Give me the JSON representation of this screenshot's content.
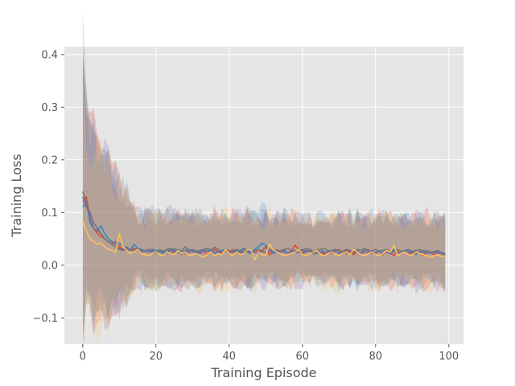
{
  "chart_data": {
    "type": "line",
    "style": "ggplot",
    "title": "",
    "xlabel": "Training Episode",
    "ylabel": "Training Loss",
    "xlim": [
      -5,
      104
    ],
    "ylim": [
      -0.15,
      0.415
    ],
    "x_ticks": [
      0,
      20,
      40,
      60,
      80,
      100
    ],
    "y_ticks": [
      -0.1,
      0.0,
      0.1,
      0.2,
      0.3,
      0.4
    ],
    "y_tick_labels": [
      "−0.1",
      "0.0",
      "0.1",
      "0.2",
      "0.3",
      "0.4"
    ],
    "x_tick_labels": [
      "0",
      "20",
      "40",
      "60",
      "80",
      "100"
    ],
    "grid": true,
    "legend": "none",
    "shaded_band": "mean ± deviation per series",
    "x": [
      0,
      1,
      2,
      3,
      4,
      5,
      6,
      7,
      8,
      9,
      10,
      11,
      12,
      13,
      14,
      15,
      16,
      17,
      18,
      19,
      20,
      21,
      22,
      23,
      24,
      25,
      26,
      27,
      28,
      29,
      30,
      31,
      32,
      33,
      34,
      35,
      36,
      37,
      38,
      39,
      40,
      41,
      42,
      43,
      44,
      45,
      46,
      47,
      48,
      49,
      50,
      51,
      52,
      53,
      54,
      55,
      56,
      57,
      58,
      59,
      60,
      61,
      62,
      63,
      64,
      65,
      66,
      67,
      68,
      69,
      70,
      71,
      72,
      73,
      74,
      75,
      76,
      77,
      78,
      79,
      80,
      81,
      82,
      83,
      84,
      85,
      86,
      87,
      88,
      89,
      90,
      91,
      92,
      93,
      94,
      95,
      96,
      97,
      98,
      99
    ],
    "series": [
      {
        "color": "#E24A33",
        "values": [
          0.12,
          0.13,
          0.09,
          0.07,
          0.06,
          0.055,
          0.05,
          0.045,
          0.04,
          0.045,
          0.035,
          0.03,
          0.028,
          0.03,
          0.032,
          0.028,
          0.025,
          0.027,
          0.03,
          0.024,
          0.025,
          0.028,
          0.026,
          0.022,
          0.03,
          0.024,
          0.026,
          0.02,
          0.028,
          0.025,
          0.03,
          0.022,
          0.026,
          0.028,
          0.02,
          0.024,
          0.03,
          0.026,
          0.022,
          0.028,
          0.025,
          0.03,
          0.024,
          0.02,
          0.026,
          0.028,
          0.022,
          0.03,
          0.025,
          0.028,
          0.035,
          0.02,
          0.026,
          0.03,
          0.024,
          0.028,
          0.022,
          0.026,
          0.038,
          0.03,
          0.024,
          0.028,
          0.026,
          0.022,
          0.03,
          0.025,
          0.02,
          0.028,
          0.024,
          0.026,
          0.03,
          0.022,
          0.028,
          0.025,
          0.02,
          0.026,
          0.024,
          0.028,
          0.03,
          0.022,
          0.025,
          0.026,
          0.02,
          0.028,
          0.024,
          0.018,
          0.026,
          0.022,
          0.028,
          0.02,
          0.024,
          0.026,
          0.022,
          0.018,
          0.028,
          0.024,
          0.02,
          0.026,
          0.022,
          0.018
        ]
      },
      {
        "color": "#348ABD",
        "values": [
          0.11,
          0.12,
          0.08,
          0.07,
          0.065,
          0.075,
          0.06,
          0.05,
          0.045,
          0.04,
          0.042,
          0.035,
          0.03,
          0.028,
          0.04,
          0.032,
          0.03,
          0.028,
          0.025,
          0.03,
          0.028,
          0.025,
          0.022,
          0.03,
          0.027,
          0.032,
          0.025,
          0.022,
          0.028,
          0.03,
          0.025,
          0.028,
          0.022,
          0.03,
          0.026,
          0.03,
          0.025,
          0.024,
          0.028,
          0.03,
          0.022,
          0.026,
          0.028,
          0.024,
          0.03,
          0.025,
          0.022,
          0.03,
          0.035,
          0.042,
          0.038,
          0.03,
          0.025,
          0.028,
          0.024,
          0.03,
          0.022,
          0.026,
          0.028,
          0.024,
          0.03,
          0.025,
          0.028,
          0.022,
          0.026,
          0.03,
          0.025,
          0.024,
          0.028,
          0.03,
          0.022,
          0.026,
          0.03,
          0.028,
          0.024,
          0.026,
          0.022,
          0.03,
          0.028,
          0.025,
          0.024,
          0.026,
          0.022,
          0.028,
          0.025,
          0.03,
          0.024,
          0.022,
          0.026,
          0.028,
          0.024,
          0.02,
          0.026,
          0.028,
          0.022,
          0.025,
          0.024,
          0.026,
          0.022,
          0.02
        ]
      },
      {
        "color": "#7A68A6",
        "values": [
          0.13,
          0.11,
          0.1,
          0.08,
          0.07,
          0.06,
          0.05,
          0.045,
          0.04,
          0.035,
          0.03,
          0.028,
          0.032,
          0.03,
          0.027,
          0.03,
          0.025,
          0.028,
          0.026,
          0.025,
          0.022,
          0.028,
          0.025,
          0.03,
          0.022,
          0.026,
          0.025,
          0.028,
          0.022,
          0.025,
          0.028,
          0.024,
          0.022,
          0.026,
          0.028,
          0.024,
          0.022,
          0.026,
          0.024,
          0.028,
          0.022,
          0.025,
          0.024,
          0.026,
          0.022,
          0.028,
          0.024,
          0.025,
          0.022,
          0.026,
          0.024,
          0.028,
          0.022,
          0.025,
          0.024,
          0.026,
          0.022,
          0.028,
          0.024,
          0.025,
          0.022,
          0.026,
          0.028,
          0.024,
          0.022,
          0.025,
          0.024,
          0.026,
          0.022,
          0.028,
          0.024,
          0.025,
          0.022,
          0.026,
          0.024,
          0.028,
          0.022,
          0.025,
          0.024,
          0.026,
          0.022,
          0.028,
          0.024,
          0.025,
          0.022,
          0.026,
          0.024,
          0.022,
          0.025,
          0.024,
          0.026,
          0.022,
          0.024,
          0.025,
          0.022,
          0.024,
          0.026,
          0.022,
          0.024,
          0.02
        ]
      },
      {
        "color": "#777777",
        "values": [
          0.14,
          0.12,
          0.09,
          0.07,
          0.065,
          0.06,
          0.05,
          0.045,
          0.04,
          0.035,
          0.032,
          0.03,
          0.035,
          0.028,
          0.03,
          0.032,
          0.028,
          0.026,
          0.03,
          0.028,
          0.024,
          0.03,
          0.026,
          0.03,
          0.032,
          0.028,
          0.03,
          0.026,
          0.035,
          0.028,
          0.03,
          0.026,
          0.028,
          0.03,
          0.032,
          0.028,
          0.034,
          0.03,
          0.026,
          0.03,
          0.028,
          0.026,
          0.03,
          0.028,
          0.032,
          0.03,
          0.026,
          0.028,
          0.03,
          0.026,
          0.035,
          0.028,
          0.03,
          0.026,
          0.028,
          0.03,
          0.032,
          0.028,
          0.026,
          0.03,
          0.028,
          0.032,
          0.03,
          0.026,
          0.028,
          0.03,
          0.032,
          0.028,
          0.026,
          0.03,
          0.028,
          0.026,
          0.03,
          0.028,
          0.026,
          0.03,
          0.028,
          0.032,
          0.026,
          0.028,
          0.03,
          0.026,
          0.028,
          0.03,
          0.026,
          0.028,
          0.03,
          0.026,
          0.028,
          0.03,
          0.026,
          0.028,
          0.03,
          0.026,
          0.028,
          0.024,
          0.026,
          0.028,
          0.024,
          0.022
        ]
      },
      {
        "color": "#FBC15E",
        "values": [
          0.085,
          0.065,
          0.05,
          0.045,
          0.04,
          0.042,
          0.035,
          0.03,
          0.028,
          0.025,
          0.06,
          0.035,
          0.028,
          0.022,
          0.025,
          0.03,
          0.022,
          0.02,
          0.018,
          0.022,
          0.025,
          0.02,
          0.018,
          0.025,
          0.022,
          0.02,
          0.028,
          0.022,
          0.025,
          0.018,
          0.02,
          0.022,
          0.018,
          0.015,
          0.02,
          0.025,
          0.018,
          0.022,
          0.02,
          0.03,
          0.022,
          0.018,
          0.025,
          0.02,
          0.022,
          0.03,
          0.028,
          0.01,
          0.025,
          0.02,
          0.018,
          0.04,
          0.03,
          0.025,
          0.022,
          0.018,
          0.02,
          0.022,
          0.025,
          0.03,
          0.02,
          0.018,
          0.022,
          0.025,
          0.028,
          0.02,
          0.018,
          0.022,
          0.025,
          0.02,
          0.018,
          0.022,
          0.025,
          0.02,
          0.03,
          0.025,
          0.02,
          0.018,
          0.022,
          0.025,
          0.02,
          0.018,
          0.022,
          0.028,
          0.025,
          0.038,
          0.018,
          0.022,
          0.025,
          0.02,
          0.018,
          0.025,
          0.022,
          0.02,
          0.018,
          0.015,
          0.018,
          0.02,
          0.016,
          0.018
        ]
      }
    ]
  }
}
